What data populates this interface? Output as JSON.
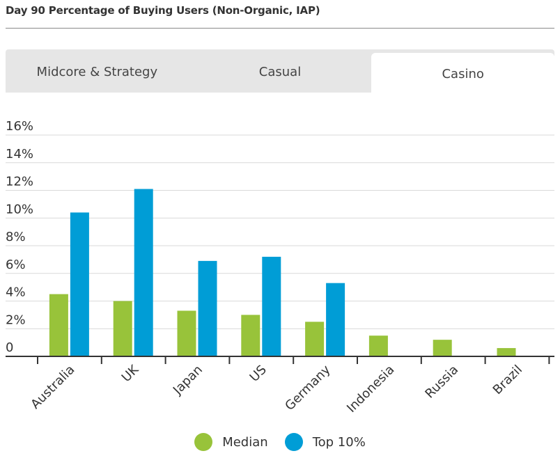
{
  "title": "Day 90 Percentage of Buying Users (Non-Organic, IAP)",
  "tabs": [
    {
      "label": "Midcore & Strategy",
      "active": false
    },
    {
      "label": "Casual",
      "active": false
    },
    {
      "label": "Casino",
      "active": true
    }
  ],
  "colors": {
    "median": "#98c33a",
    "top10": "#009dd6",
    "grid": "#d9d9d9",
    "axis": "#333333"
  },
  "chart_data": {
    "type": "bar",
    "categories": [
      "Australia",
      "UK",
      "Japan",
      "US",
      "Germany",
      "Indonesia",
      "Russia",
      "Brazil"
    ],
    "series": [
      {
        "name": "Median",
        "values": [
          4.5,
          4.0,
          3.3,
          3.0,
          2.5,
          1.5,
          1.2,
          0.6
        ]
      },
      {
        "name": "Top 10%",
        "values": [
          10.4,
          12.1,
          6.9,
          7.2,
          5.3,
          null,
          null,
          null
        ]
      }
    ],
    "y_ticks": [
      "16%",
      "14%",
      "12%",
      "10%",
      "8%",
      "6%",
      "4%",
      "2%",
      "0"
    ],
    "ylim": [
      0,
      16
    ],
    "grid": true,
    "legend": "bottom-center"
  },
  "legend": {
    "median_label": "Median",
    "top10_label": "Top 10%"
  }
}
